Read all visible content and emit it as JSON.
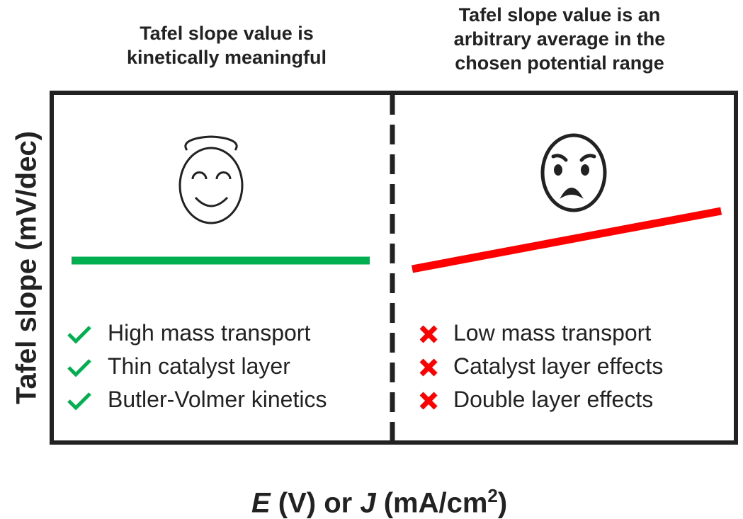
{
  "left_panel": {
    "title_line1": "Tafel slope value is",
    "title_line2": "kinetically meaningful",
    "face_icon": "smiling-angel-face",
    "line_color": "#00b050",
    "items": [
      "High mass transport",
      "Thin catalyst layer",
      "Butler-Volmer kinetics"
    ],
    "marker": "checkmark",
    "marker_color": "#00b050"
  },
  "right_panel": {
    "title_line1": "Tafel slope value is an",
    "title_line2": "arbitrary average in the",
    "title_line3": "chosen potential range",
    "face_icon": "angry-face",
    "line_color": "#ff0000",
    "items": [
      "Low mass transport",
      "Catalyst layer effects",
      "Double layer effects"
    ],
    "marker": "cross",
    "marker_color": "#ff0000"
  },
  "axes": {
    "ylabel": "Tafel slope (mV/dec)",
    "xlabel_e": "E",
    "xlabel_mid": " (V) or ",
    "xlabel_j": "J",
    "xlabel_unit": " (mA/cm",
    "xlabel_sup": "2",
    "xlabel_end": ")"
  }
}
